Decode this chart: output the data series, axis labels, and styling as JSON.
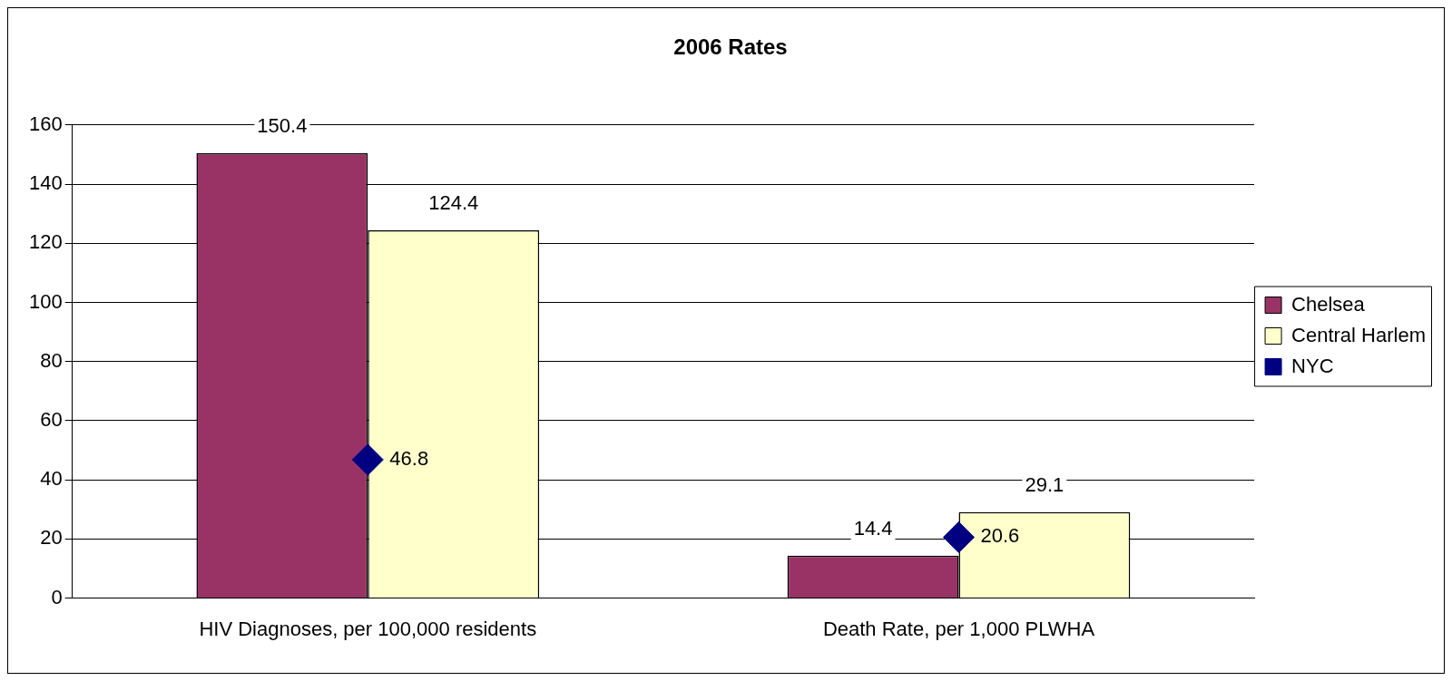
{
  "chart_data": {
    "type": "bar",
    "title": "2006 Rates",
    "categories": [
      "HIV Diagnoses, per 100,000 residents",
      "Death Rate, per 1,000 PLWHA"
    ],
    "series": [
      {
        "name": "Chelsea",
        "color": "#993366",
        "values": [
          150.4,
          14.4
        ]
      },
      {
        "name": "Central Harlem",
        "color": "#ffffcc",
        "values": [
          124.4,
          29.1
        ]
      },
      {
        "name": "NYC",
        "type": "scatter",
        "color": "#000080",
        "x": [
          "HIV Diagnoses, per 100,000 residents",
          "Death Rate, per 1,000 PLWHA"
        ],
        "values": [
          46.8,
          20.6
        ]
      }
    ],
    "ylim": [
      0,
      160
    ],
    "yticks": [
      0,
      20,
      40,
      60,
      80,
      100,
      120,
      140,
      160
    ],
    "grid": "y",
    "legend": "right",
    "marker": "diamond",
    "data_labels": true
  }
}
